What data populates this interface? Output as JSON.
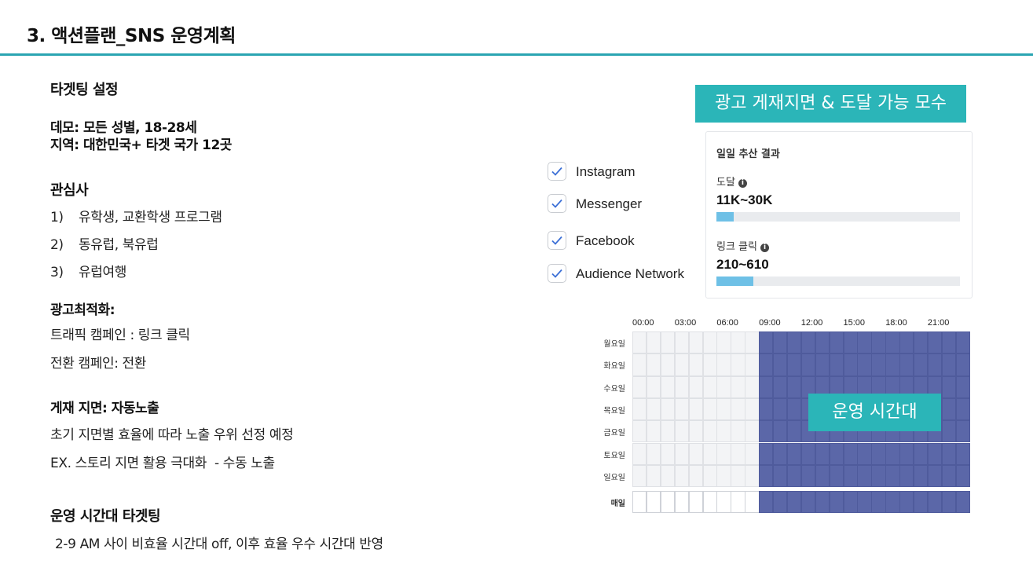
{
  "page_title": "3. 액션플랜_SNS 운영계획",
  "left": {
    "targeting_title": "타겟팅 설정",
    "demo": "데모: 모든 성별, 18-28세",
    "region": "지역: 대한민국+ 타겟 국가 12곳",
    "interests_title": "관심사",
    "interests": [
      {
        "num": "1)",
        "text": "유학생, 교환학생 프로그램"
      },
      {
        "num": "2)",
        "text": "동유럽, 북유럽"
      },
      {
        "num": "3)",
        "text": "유럽여행"
      }
    ],
    "optimization_title": "광고최적화:",
    "optimization": [
      "트래픽 캠페인 : 링크 클릭",
      "전환 캠페인: 전환"
    ],
    "placement_title": "게재 지면: 자동노출",
    "placement": [
      "초기 지면별 효율에 따라 노출 우위 선정 예정",
      "EX. 스토리 지면 활용 극대화  - 수동 노출"
    ],
    "schedule_title": "운영 시간대 타겟팅",
    "schedule_desc": "2-9 AM 사이 비효율 시간대 off, 이후 효율 우수 시간대 반영"
  },
  "right": {
    "placement_badge": "광고 게재지면 & 도달 가능 모수",
    "platforms": [
      "Instagram",
      "Messenger",
      "Facebook",
      "Audience Network"
    ],
    "estimate": {
      "title": "일일 추산 결과",
      "reach_label": "도달",
      "reach_value": "11K~30K",
      "reach_fill": 0.07,
      "clicks_label": "링크 클릭",
      "clicks_value": "210~610",
      "clicks_fill": 0.15
    },
    "schedule": {
      "hours": [
        "00:00",
        "03:00",
        "06:00",
        "09:00",
        "12:00",
        "15:00",
        "18:00",
        "21:00"
      ],
      "days": [
        "월요일",
        "화요일",
        "수요일",
        "목요일",
        "금요일",
        "토요일",
        "일요일"
      ],
      "everyday_label": "매일",
      "active_from_hour": 9,
      "badge": "운영 시간대",
      "active_color": "#5b67a8",
      "inactive_color": "#f3f4f6"
    }
  },
  "colors": {
    "accent": "#2aa5b2",
    "badge": "#2bb5b8"
  }
}
